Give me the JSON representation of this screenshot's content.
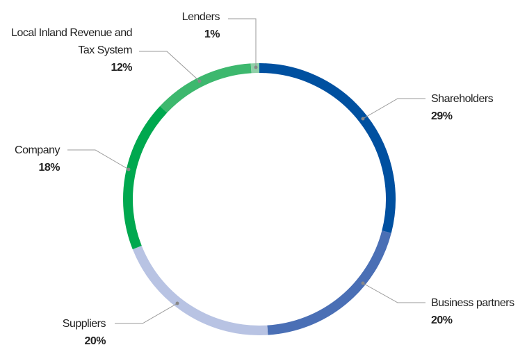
{
  "chart_data": {
    "type": "donut",
    "categories": [
      "Shareholders",
      "Business partners",
      "Suppliers",
      "Company",
      "Local Inland Revenue and Tax System",
      "Lenders"
    ],
    "values": [
      29,
      20,
      20,
      18,
      12,
      1
    ],
    "value_labels": [
      "29%",
      "20%",
      "20%",
      "18%",
      "12%",
      "1%"
    ],
    "colors": [
      "#0050a0",
      "#4a6fb5",
      "#b8c3e3",
      "#00a84f",
      "#3db86e",
      "#8fd0a8"
    ]
  }
}
